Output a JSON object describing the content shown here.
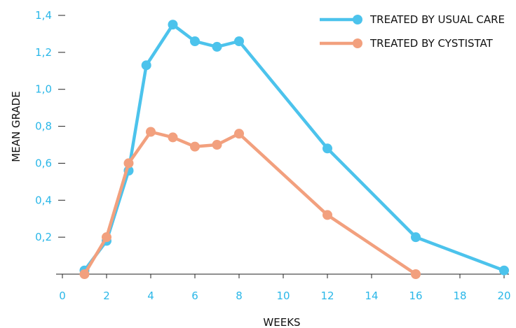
{
  "chart_data": {
    "type": "line",
    "title": "",
    "xlabel": "WEEKS",
    "ylabel": "MEAN GRADE",
    "xlim": [
      0,
      20
    ],
    "ylim": [
      0,
      1.4
    ],
    "xticks": [
      0,
      2,
      4,
      6,
      8,
      10,
      12,
      14,
      16,
      18,
      20
    ],
    "xtick_labels": [
      "0",
      "2",
      "4",
      "6",
      "8",
      "10",
      "12",
      "14",
      "16",
      "18",
      "20"
    ],
    "yticks": [
      0.2,
      0.4,
      0.6,
      0.8,
      1.0,
      1.2,
      1.4
    ],
    "ytick_labels": [
      "0,2",
      "0,4",
      "0,6",
      "0,8",
      "1,0",
      "1,2",
      "1,4"
    ],
    "grid": false,
    "legend_position": "top-right",
    "tick_label_color": "#2ab7e8",
    "series": [
      {
        "name": "TREATED BY USUAL CARE",
        "color": "#4cc3ec",
        "x": [
          1,
          2,
          3,
          3.8,
          5,
          6,
          7,
          8,
          12,
          16,
          20
        ],
        "y": [
          0.02,
          0.18,
          0.56,
          1.13,
          1.35,
          1.26,
          1.23,
          1.26,
          0.68,
          0.2,
          0.02
        ]
      },
      {
        "name": "TREATED BY CYSTISTAT",
        "color": "#f2a07e",
        "x": [
          1,
          2,
          3,
          4,
          5,
          6,
          7,
          8,
          12,
          16
        ],
        "y": [
          0.0,
          0.2,
          0.6,
          0.77,
          0.74,
          0.69,
          0.7,
          0.76,
          0.32,
          0.0
        ]
      }
    ]
  }
}
